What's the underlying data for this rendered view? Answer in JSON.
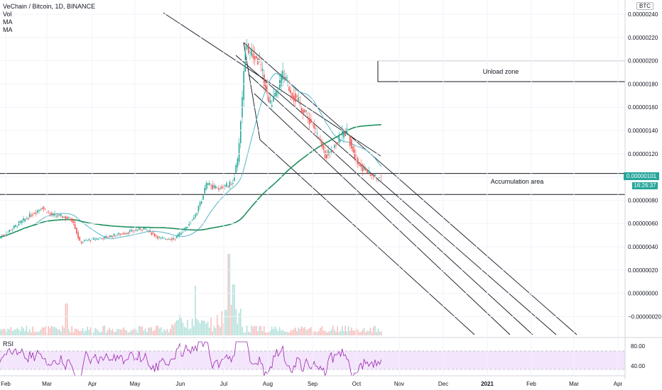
{
  "legend": {
    "title": "VeChain / Bitcoin, 1D, BINANCE",
    "vol": "Vol",
    "ma1": "MA",
    "ma2": "MA",
    "rsi": "RSI"
  },
  "price_scale": {
    "unit": "BTC",
    "current_price": "0.00000101",
    "countdown": "16:26:37"
  },
  "annotations": {
    "unload": "Unload zone",
    "accumulation": "Accumulation area"
  },
  "colors": {
    "up": "#26a69a",
    "down": "#ef5350",
    "ma_fast": "#56b4c7",
    "ma_slow": "#1e8f5c",
    "rsi_line": "#9c27b0",
    "rsi_band": "#f3e5fb"
  },
  "chart_data": {
    "type": "candlestick",
    "title": "VeChain / Bitcoin, 1D, BINANCE",
    "x_tick_labels": [
      "Feb",
      "Mar",
      "Apr",
      "May",
      "Jun",
      "Jul",
      "Aug",
      "Sep",
      "Oct",
      "Nov",
      "Dec",
      "2021",
      "Feb",
      "Mar",
      "Apr"
    ],
    "y_tick_labels": [
      "0.00000240",
      "0.00000220",
      "0.00000200",
      "0.00000180",
      "0.00000160",
      "0.00000140",
      "0.00000120",
      "0.00000100",
      "0.00000080",
      "0.00000060",
      "0.00000040",
      "0.00000020",
      "0.00000000",
      "−0.00000020"
    ],
    "ylim": [
      -2e-07,
      2.4e-06
    ],
    "price_path": [
      {
        "date": "2020-02-01",
        "close": 6.2e-07
      },
      {
        "date": "2020-02-08",
        "close": 6.8e-07
      },
      {
        "date": "2020-02-15",
        "close": 7.4e-07
      },
      {
        "date": "2020-02-22",
        "close": 6.7e-07
      },
      {
        "date": "2020-03-01",
        "close": 6.6e-07
      },
      {
        "date": "2020-03-08",
        "close": 6.3e-07
      },
      {
        "date": "2020-03-13",
        "close": 4.4e-07
      },
      {
        "date": "2020-03-20",
        "close": 4.6e-07
      },
      {
        "date": "2020-03-31",
        "close": 4.8e-07
      },
      {
        "date": "2020-04-15",
        "close": 5.2e-07
      },
      {
        "date": "2020-04-28",
        "close": 5.6e-07
      },
      {
        "date": "2020-05-10",
        "close": 4.7e-07
      },
      {
        "date": "2020-05-20",
        "close": 4.7e-07
      },
      {
        "date": "2020-05-28",
        "close": 5.6e-07
      },
      {
        "date": "2020-06-05",
        "close": 7e-07
      },
      {
        "date": "2020-06-12",
        "close": 9.4e-07
      },
      {
        "date": "2020-06-20",
        "close": 9e-07
      },
      {
        "date": "2020-06-30",
        "close": 9.4e-07
      },
      {
        "date": "2020-07-04",
        "close": 1.12e-06
      },
      {
        "date": "2020-07-07",
        "close": 1.6e-06
      },
      {
        "date": "2020-07-10",
        "close": 2.14e-06
      },
      {
        "date": "2020-07-14",
        "close": 2.05e-06
      },
      {
        "date": "2020-07-20",
        "close": 1.98e-06
      },
      {
        "date": "2020-07-27",
        "close": 1.62e-06
      },
      {
        "date": "2020-08-01",
        "close": 1.7e-06
      },
      {
        "date": "2020-08-05",
        "close": 1.88e-06
      },
      {
        "date": "2020-08-12",
        "close": 1.72e-06
      },
      {
        "date": "2020-08-20",
        "close": 1.58e-06
      },
      {
        "date": "2020-08-28",
        "close": 1.42e-06
      },
      {
        "date": "2020-09-05",
        "close": 1.18e-06
      },
      {
        "date": "2020-09-12",
        "close": 1.28e-06
      },
      {
        "date": "2020-09-20",
        "close": 1.4e-06
      },
      {
        "date": "2020-09-28",
        "close": 1.12e-06
      },
      {
        "date": "2020-10-05",
        "close": 1.04e-06
      },
      {
        "date": "2020-10-12",
        "close": 9.8e-07
      },
      {
        "date": "2020-10-16",
        "close": 1.01e-06
      }
    ],
    "horizontal_levels": [
      1.03e-06,
      8.5e-07
    ],
    "zones": [
      {
        "label": "Unload zone",
        "from": 1.82e-06,
        "to": 2e-06
      }
    ],
    "rsi_levels": [
      "80.00",
      "40.00"
    ]
  }
}
